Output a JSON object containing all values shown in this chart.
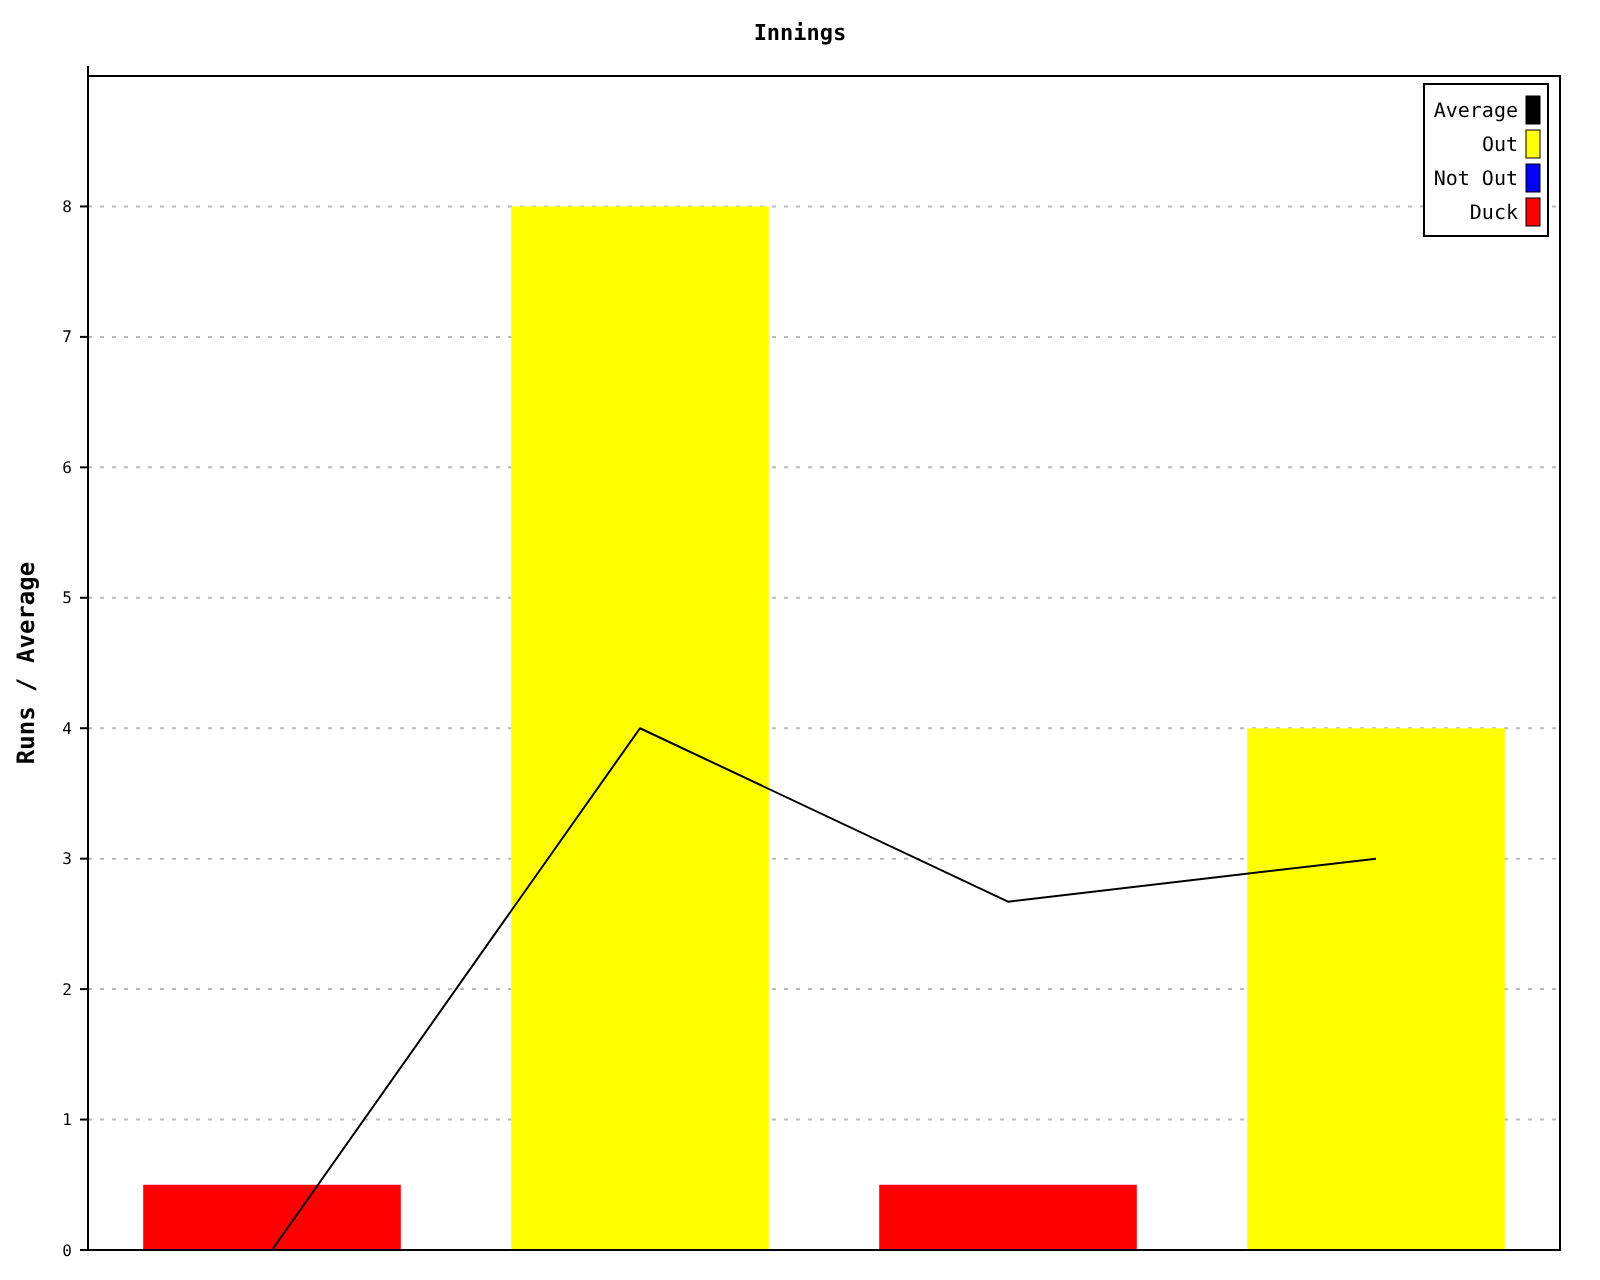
{
  "chart_data": {
    "type": "bar",
    "title": "Innings",
    "ylabel": "Runs / Average",
    "categories": [
      null,
      null,
      null,
      null
    ],
    "ylim": [
      0,
      9
    ],
    "yticks": [
      0,
      1,
      2,
      3,
      4,
      5,
      6,
      7,
      8
    ],
    "grid": "y",
    "legend": "top right",
    "series": [
      {
        "name": "Average",
        "type": "line",
        "color": "#000000",
        "values": [
          0,
          4,
          2.67,
          3
        ]
      },
      {
        "name": "Out",
        "color": "#ffff00",
        "values": [
          null,
          8,
          null,
          4
        ]
      },
      {
        "name": "Not Out",
        "color": "#0000ff",
        "values": [
          null,
          null,
          null,
          null
        ]
      },
      {
        "name": "Duck",
        "color": "#ff0000",
        "values": [
          0.5,
          null,
          0.5,
          null
        ]
      }
    ]
  }
}
